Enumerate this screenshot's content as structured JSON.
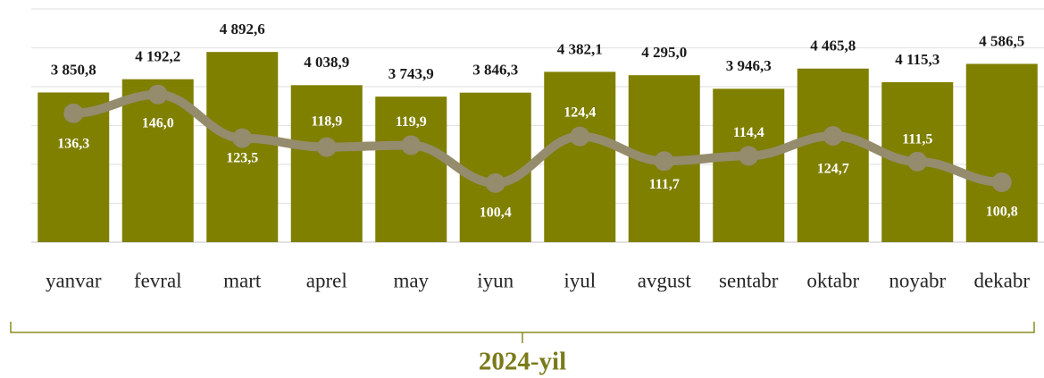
{
  "chart_data": {
    "type": "bar",
    "xlabel": "2024-yil",
    "categories": [
      "yanvar",
      "fevral",
      "mart",
      "aprel",
      "may",
      "iyun",
      "iyul",
      "avgust",
      "sentabr",
      "oktabr",
      "noyabr",
      "dekabr"
    ],
    "series": [
      {
        "type": "bar",
        "color": "#7f7f00",
        "values": [
          3850.8,
          4192.2,
          4892.6,
          4038.9,
          3743.9,
          3846.3,
          4382.1,
          4295.0,
          3946.3,
          4465.8,
          4115.3,
          4586.5
        ],
        "value_labels": [
          "3 850,8",
          "4 192,2",
          "4 892,6",
          "4 038,9",
          "3 743,9",
          "3 846,3",
          "4 382,1",
          "4 295,0",
          "3 946,3",
          "4 465,8",
          "4 115,3",
          "4 586,5"
        ]
      },
      {
        "type": "line",
        "axis": "y2",
        "color": "#948c6c",
        "values": [
          136.3,
          146.0,
          123.5,
          118.9,
          119.9,
          100.4,
          124.4,
          111.7,
          114.4,
          124.7,
          111.5,
          100.8
        ],
        "value_labels": [
          "136,3",
          "146,0",
          "123,5",
          "118,9",
          "119,9",
          "100,4",
          "124,4",
          "111,7",
          "114,4",
          "124,7",
          "111,5",
          "100,8"
        ]
      }
    ],
    "ylim": [
      0,
      6000
    ],
    "yticks": [
      0,
      1000,
      2000,
      3000,
      4000,
      5000,
      6000
    ],
    "grid": true,
    "y2lim": [
      70,
      190
    ]
  }
}
